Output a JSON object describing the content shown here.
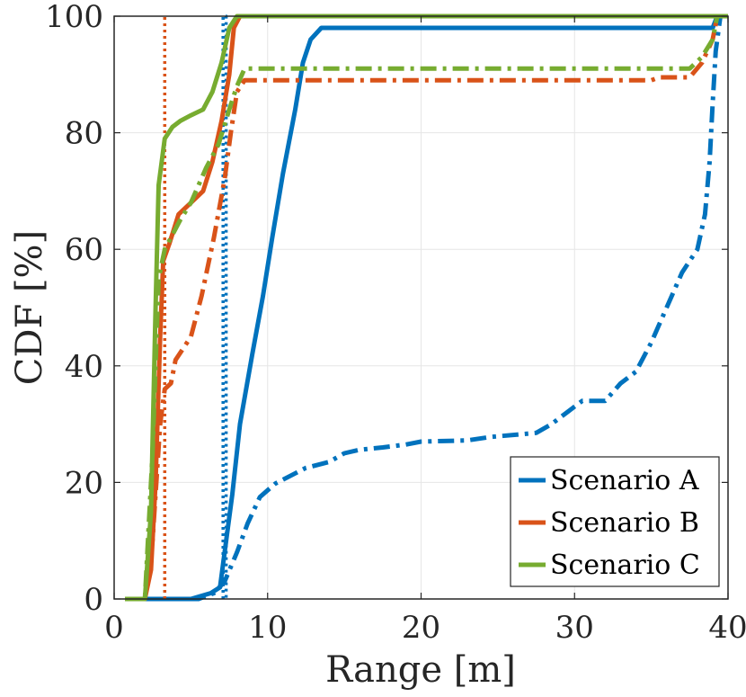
{
  "chart_data": {
    "type": "line",
    "xlabel": "Range [m]",
    "ylabel": "CDF [%]",
    "xlim": [
      0,
      40
    ],
    "ylim": [
      0,
      100
    ],
    "xticks": [
      "0",
      "10",
      "20",
      "30",
      "40"
    ],
    "yticks": [
      "0",
      "20",
      "40",
      "60",
      "80",
      "100"
    ],
    "grid": true,
    "legend_position": "bottom-right",
    "legend": [
      "Scenario A",
      "Scenario B",
      "Scenario C"
    ],
    "colors": {
      "A": "#0072BD",
      "B": "#D95319",
      "C": "#77AC30"
    },
    "series": [
      {
        "name": "Scenario A",
        "key": "A",
        "style": "solid",
        "legend": true,
        "points": [
          [
            0.7,
            0
          ],
          [
            5,
            0
          ],
          [
            6.3,
            1
          ],
          [
            6.9,
            2
          ],
          [
            7.2,
            8
          ],
          [
            7.7,
            18
          ],
          [
            8.2,
            30
          ],
          [
            9,
            42
          ],
          [
            9.7,
            52
          ],
          [
            10.3,
            62
          ],
          [
            11,
            73
          ],
          [
            11.8,
            84
          ],
          [
            12.3,
            92
          ],
          [
            12.8,
            96
          ],
          [
            13.5,
            98
          ],
          [
            39,
            98
          ],
          [
            39.3,
            100
          ],
          [
            40,
            100
          ]
        ]
      },
      {
        "name": "Scenario A (dash-dot)",
        "key": "A",
        "style": "dashdot",
        "legend": false,
        "points": [
          [
            0.7,
            0
          ],
          [
            5.5,
            0
          ],
          [
            6.5,
            1
          ],
          [
            7.2,
            3
          ],
          [
            8,
            8
          ],
          [
            8.7,
            13
          ],
          [
            9.5,
            17.5
          ],
          [
            10.5,
            19.8
          ],
          [
            12.5,
            22.5
          ],
          [
            14,
            23.5
          ],
          [
            15,
            25
          ],
          [
            16,
            25.6
          ],
          [
            17.5,
            26
          ],
          [
            19,
            26.5
          ],
          [
            20,
            27
          ],
          [
            23,
            27.2
          ],
          [
            24.5,
            27.8
          ],
          [
            27.5,
            28.5
          ],
          [
            28.5,
            30
          ],
          [
            29.5,
            32
          ],
          [
            30.5,
            34
          ],
          [
            32,
            34
          ],
          [
            33,
            37
          ],
          [
            34,
            39
          ],
          [
            35,
            44
          ],
          [
            36,
            50
          ],
          [
            37,
            56
          ],
          [
            38,
            60
          ],
          [
            38.5,
            66
          ],
          [
            38.8,
            75
          ],
          [
            39,
            85
          ],
          [
            39.2,
            94
          ],
          [
            39.5,
            100
          ],
          [
            40,
            100
          ]
        ]
      },
      {
        "name": "Scenario A (dotted)",
        "key": "A",
        "style": "dotted",
        "legend": false,
        "points": [
          [
            7.1,
            0
          ],
          [
            7.1,
            100
          ],
          [
            7.3,
            100
          ],
          [
            7.3,
            0
          ]
        ]
      },
      {
        "name": "Scenario B",
        "key": "B",
        "style": "solid",
        "legend": true,
        "points": [
          [
            0.7,
            0
          ],
          [
            2,
            0
          ],
          [
            2.4,
            5
          ],
          [
            2.7,
            20
          ],
          [
            3,
            45
          ],
          [
            3.2,
            58
          ],
          [
            3.6,
            61
          ],
          [
            4.2,
            66
          ],
          [
            5,
            68
          ],
          [
            5.8,
            70
          ],
          [
            6.4,
            75
          ],
          [
            7,
            82
          ],
          [
            7.5,
            90
          ],
          [
            7.8,
            98
          ],
          [
            8.2,
            100
          ],
          [
            40,
            100
          ]
        ]
      },
      {
        "name": "Scenario B (dash-dot)",
        "key": "B",
        "style": "dashdot",
        "legend": false,
        "points": [
          [
            0.7,
            0
          ],
          [
            2,
            0
          ],
          [
            2.5,
            10
          ],
          [
            3,
            30
          ],
          [
            3.3,
            36
          ],
          [
            3.7,
            37
          ],
          [
            4,
            41
          ],
          [
            5,
            45
          ],
          [
            5.7,
            52
          ],
          [
            6.5,
            62
          ],
          [
            7.2,
            72
          ],
          [
            7.6,
            80
          ],
          [
            8,
            87
          ],
          [
            8.5,
            89
          ],
          [
            35,
            89
          ],
          [
            35.5,
            89.5
          ],
          [
            37.5,
            89.5
          ],
          [
            38.3,
            92
          ],
          [
            39,
            96
          ],
          [
            39.3,
            100
          ],
          [
            40,
            100
          ]
        ]
      },
      {
        "name": "Scenario B (dotted)",
        "key": "B",
        "style": "dotted",
        "legend": false,
        "points": [
          [
            3.3,
            0
          ],
          [
            3.3,
            100
          ]
        ]
      },
      {
        "name": "Scenario C",
        "key": "C",
        "style": "solid",
        "legend": true,
        "points": [
          [
            0.7,
            0
          ],
          [
            2,
            0
          ],
          [
            2.4,
            15
          ],
          [
            2.7,
            50
          ],
          [
            2.9,
            71
          ],
          [
            3.3,
            79
          ],
          [
            3.8,
            81
          ],
          [
            4.3,
            82
          ],
          [
            5,
            83
          ],
          [
            5.8,
            84
          ],
          [
            6.4,
            87
          ],
          [
            7,
            92
          ],
          [
            7.5,
            98
          ],
          [
            8,
            100
          ],
          [
            40,
            100
          ]
        ]
      },
      {
        "name": "Scenario C (dash-dot)",
        "key": "C",
        "style": "dashdot",
        "legend": false,
        "points": [
          [
            0.7,
            0
          ],
          [
            2,
            0
          ],
          [
            2.5,
            25
          ],
          [
            2.9,
            55
          ],
          [
            3.3,
            60
          ],
          [
            3.7,
            62
          ],
          [
            4.3,
            65
          ],
          [
            5,
            68
          ],
          [
            6,
            74
          ],
          [
            6.8,
            78
          ],
          [
            7.5,
            84
          ],
          [
            8,
            88
          ],
          [
            8.5,
            91
          ],
          [
            37.5,
            91
          ],
          [
            38.3,
            93
          ],
          [
            39,
            96
          ],
          [
            39.3,
            100
          ],
          [
            40,
            100
          ]
        ]
      }
    ]
  }
}
